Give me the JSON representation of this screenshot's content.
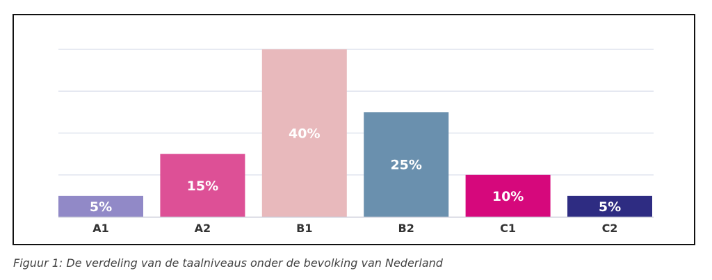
{
  "chart_data": {
    "type": "bar",
    "categories": [
      "A1",
      "A2",
      "B1",
      "B2",
      "C1",
      "C2"
    ],
    "values": [
      5,
      15,
      40,
      25,
      10,
      5
    ],
    "value_labels": [
      "5%",
      "15%",
      "40%",
      "25%",
      "10%",
      "5%"
    ],
    "colors": [
      "#9189c7",
      "#dd5096",
      "#e8b9bc",
      "#6a90ae",
      "#d6087c",
      "#2e2c82"
    ],
    "ylim": [
      0,
      40
    ],
    "gridlines": [
      10,
      20,
      30,
      40
    ],
    "grid": true,
    "gridline_color": "#dfe3ee",
    "axis_color": "#c9cbd8",
    "title": "",
    "xlabel": "",
    "ylabel": ""
  },
  "caption": "Figuur 1: De verdeling van de taalniveaus onder de bevolking van Nederland"
}
